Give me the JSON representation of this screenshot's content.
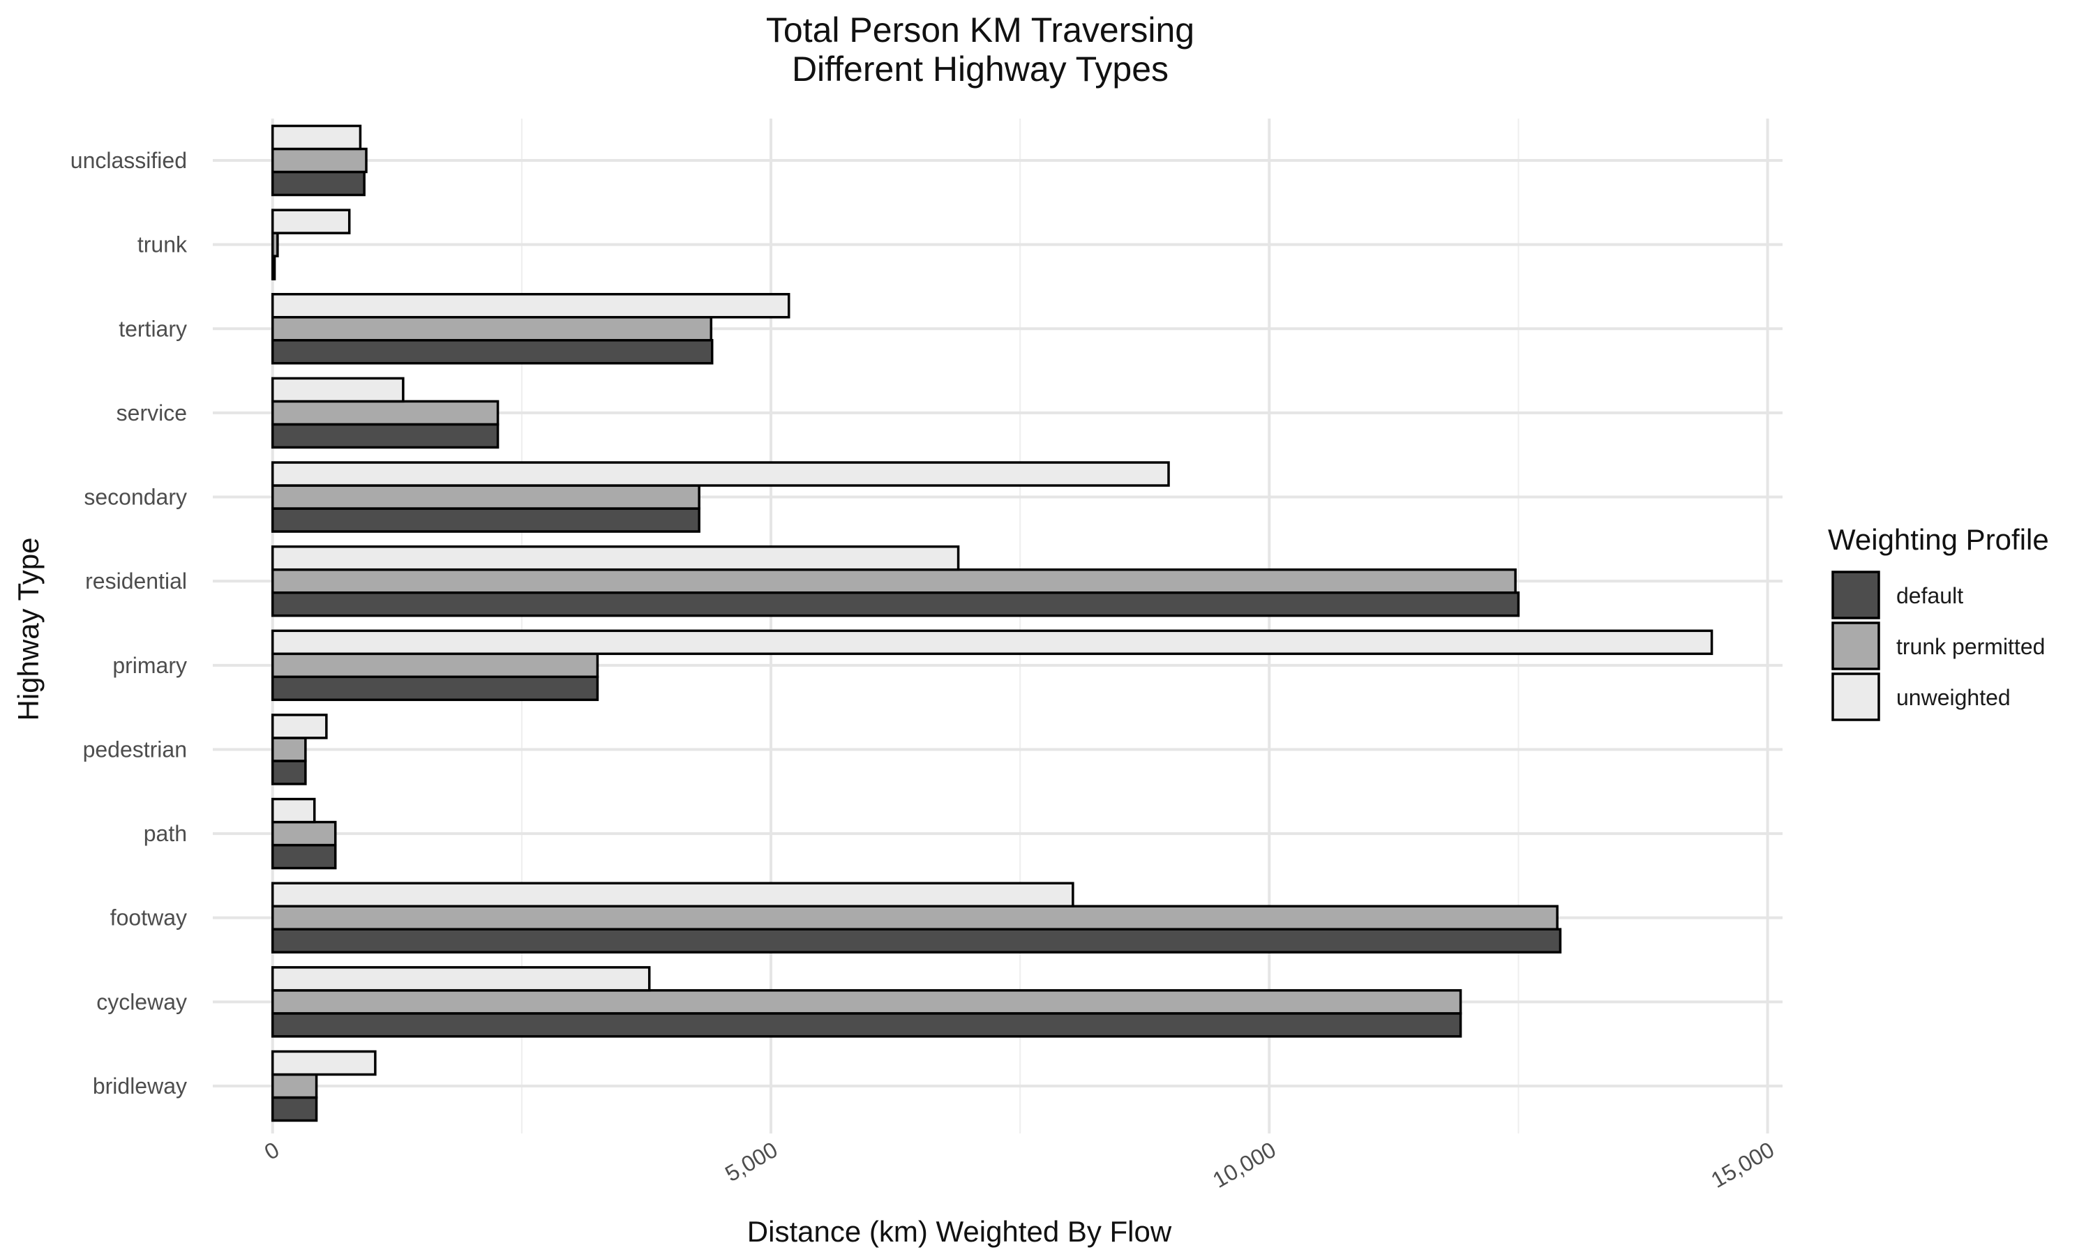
{
  "chart_data": {
    "type": "bar",
    "orientation": "horizontal",
    "title": "Total Person KM Traversing\nDifferent Highway Types",
    "xlabel": "Distance (km) Weighted By Flow",
    "ylabel": "Highway Type",
    "xlim": [
      -600,
      15150
    ],
    "xticks": [
      0,
      5000,
      10000,
      15000
    ],
    "xtick_labels": [
      "0",
      "5,000",
      "10,000",
      "15,000"
    ],
    "grid": true,
    "legend_position": "right",
    "legend_title": "Weighting Profile",
    "categories": [
      "bridleway",
      "cycleway",
      "footway",
      "path",
      "pedestrian",
      "primary",
      "residential",
      "secondary",
      "service",
      "tertiary",
      "trunk",
      "unclassified"
    ],
    "series": [
      {
        "name": "default",
        "color": "#4d4d4d",
        "values": [
          440,
          11920,
          12920,
          630,
          330,
          3260,
          12500,
          4280,
          2260,
          4410,
          20,
          920
        ]
      },
      {
        "name": "trunk permitted",
        "color": "#aaaaaa",
        "values": [
          440,
          11920,
          12890,
          630,
          330,
          3260,
          12470,
          4280,
          2260,
          4400,
          50,
          940
        ]
      },
      {
        "name": "unweighted",
        "color": "#ebebeb",
        "values": [
          1030,
          3780,
          8030,
          420,
          540,
          14440,
          6880,
          8990,
          1310,
          5180,
          770,
          880
        ]
      }
    ]
  }
}
